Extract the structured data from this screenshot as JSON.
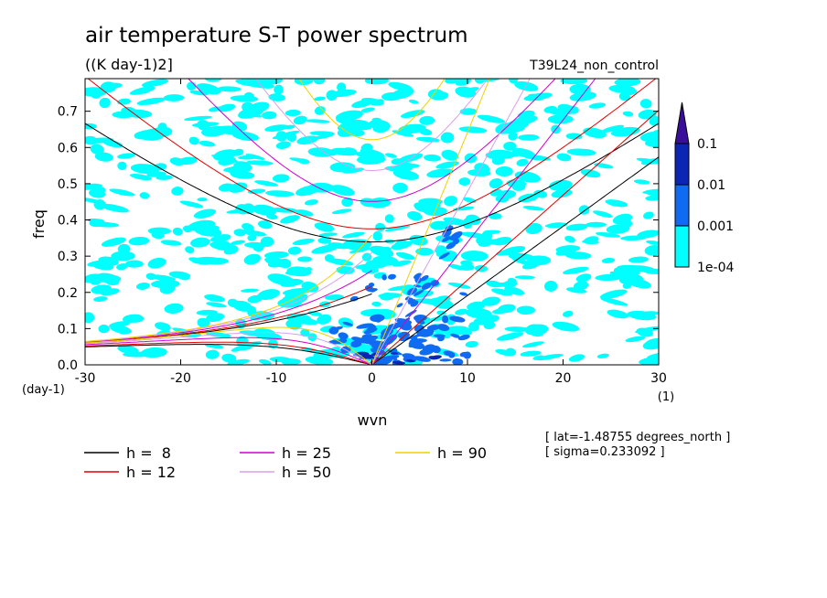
{
  "chart_data": {
    "type": "heatmap",
    "title": "air temperature S-T power spectrum",
    "units": "((K day-1)2]",
    "run_label": "T39L24_non_control",
    "xlabel": "wvn",
    "ylabel": "freq",
    "x_unit_label": "(1)",
    "y_unit_label": "(day-1)",
    "xlim": [
      -30,
      30
    ],
    "ylim": [
      0,
      0.79
    ],
    "x_ticks": [
      -30,
      -20,
      -10,
      0,
      10,
      20,
      30
    ],
    "x_tick_labels": [
      "-30",
      "-20",
      "-10",
      "0",
      "10",
      "20",
      "30"
    ],
    "y_ticks": [
      0.0,
      0.1,
      0.2,
      0.3,
      0.4,
      0.5,
      0.6,
      0.7
    ],
    "y_tick_labels": [
      "0.0",
      "0.1",
      "0.2",
      "0.3",
      "0.4",
      "0.5",
      "0.6",
      "0.7"
    ],
    "colorbar": {
      "levels": [
        0.0001,
        0.001,
        0.01,
        0.1
      ],
      "labels": [
        "1e-04",
        "0.001",
        "0.01",
        "0.1"
      ],
      "colors": [
        "#00ffff",
        "#0f6cf2",
        "#0b26b4",
        "#3a0e9a"
      ]
    },
    "equivalent_depths": [
      {
        "h": 8,
        "label": "h =  8",
        "color": "#000000"
      },
      {
        "h": 12,
        "label": "h = 12",
        "color": "#e00000"
      },
      {
        "h": 25,
        "label": "h = 25",
        "color": "#d000d0"
      },
      {
        "h": 50,
        "label": "h = 50",
        "color": "#d8a0e8"
      },
      {
        "h": 90,
        "label": "h = 90",
        "color": "#f0d000"
      }
    ],
    "info_lines": [
      "[ lat=-1.48755 degrees_north ]",
      "[ sigma=0.233092 ]"
    ]
  }
}
